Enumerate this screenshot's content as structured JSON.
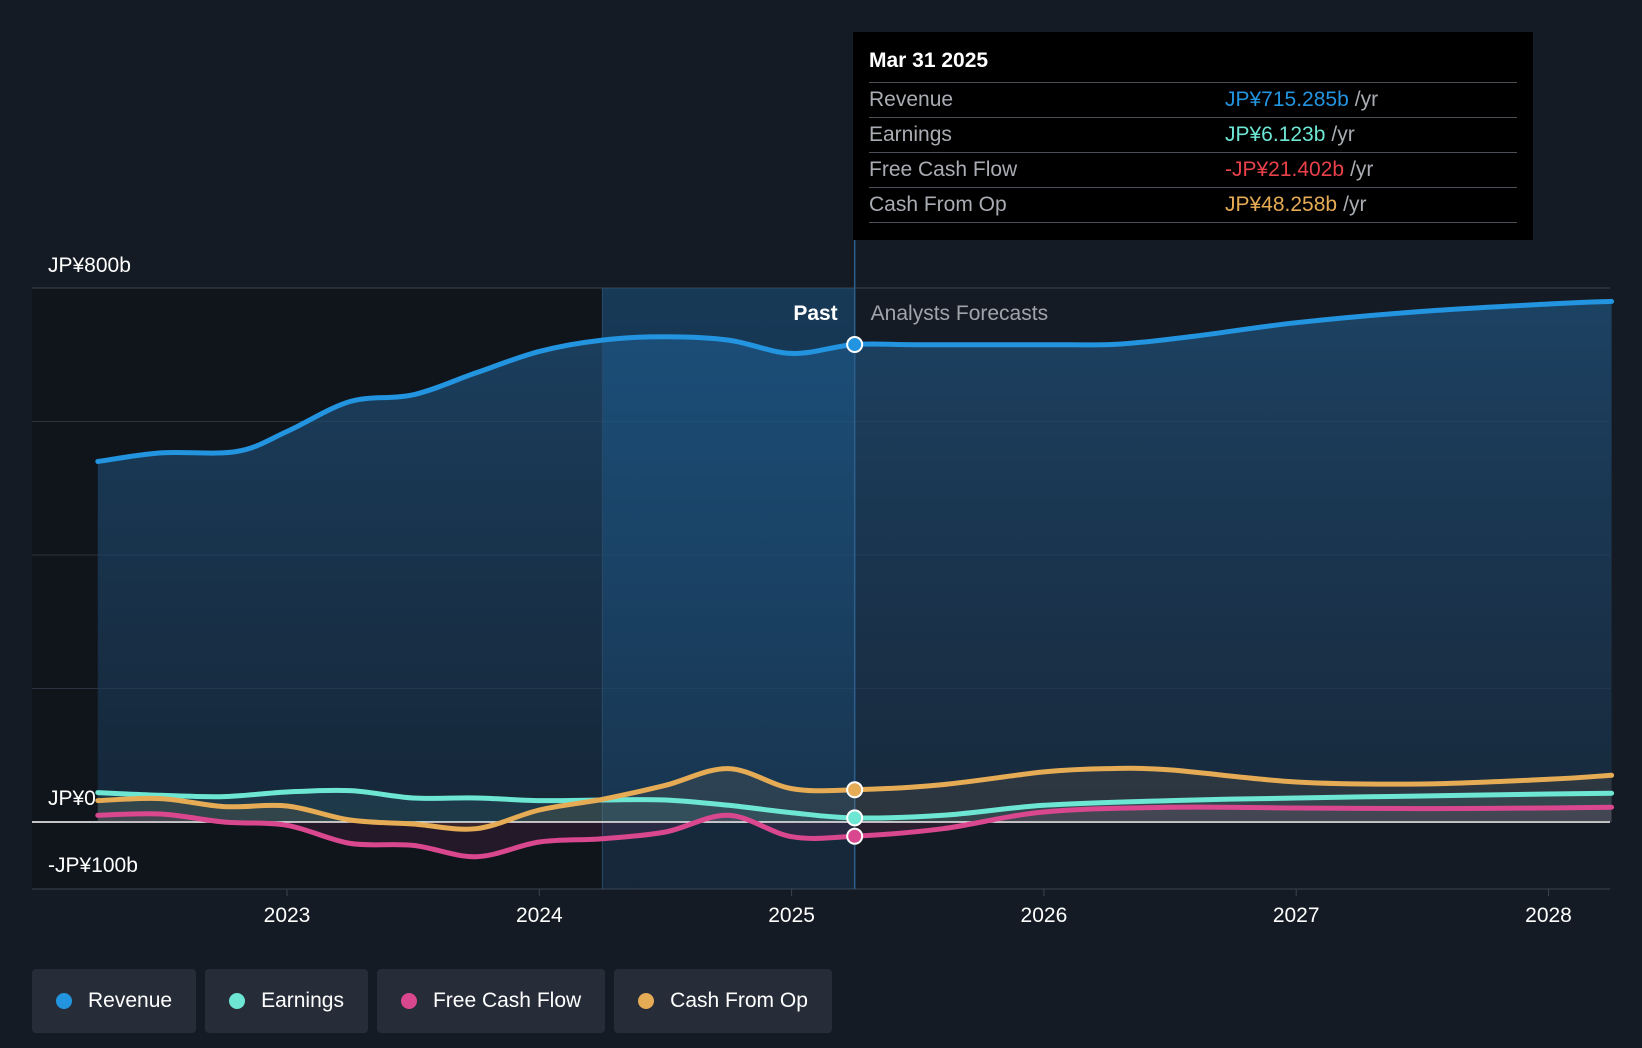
{
  "chart_data": {
    "type": "line",
    "currency": "JP¥",
    "x_ticks": [
      "2023",
      "2024",
      "2025",
      "2026",
      "2027",
      "2028"
    ],
    "y_labels": {
      "top": "JP¥800b",
      "zero": "JP¥0",
      "bottom": "-JP¥100b"
    },
    "ylim": [
      -100,
      800
    ],
    "xlim": [
      2022.25,
      2028.25
    ],
    "past_label": "Past",
    "forecast_label": "Analysts Forecasts",
    "divider_x": 2025.25,
    "highlight_start_x": 2024.25,
    "series": [
      {
        "key": "revenue",
        "name": "Revenue",
        "color": "#2394df",
        "fill": true,
        "points": [
          [
            2022.25,
            540
          ],
          [
            2022.5,
            553
          ],
          [
            2022.8,
            555
          ],
          [
            2023.0,
            585
          ],
          [
            2023.25,
            630
          ],
          [
            2023.5,
            640
          ],
          [
            2023.75,
            673
          ],
          [
            2024.0,
            705
          ],
          [
            2024.25,
            722
          ],
          [
            2024.5,
            727
          ],
          [
            2024.75,
            722
          ],
          [
            2025.0,
            702
          ],
          [
            2025.25,
            715.285
          ],
          [
            2025.5,
            715
          ],
          [
            2026.0,
            715
          ],
          [
            2026.3,
            716
          ],
          [
            2026.6,
            728
          ],
          [
            2027.0,
            748
          ],
          [
            2027.5,
            765
          ],
          [
            2028.0,
            776
          ],
          [
            2028.25,
            780
          ]
        ]
      },
      {
        "key": "earnings",
        "name": "Earnings",
        "color": "#6ee6d4",
        "fill": false,
        "points": [
          [
            2022.25,
            44
          ],
          [
            2022.5,
            40
          ],
          [
            2022.75,
            38
          ],
          [
            2023.0,
            45
          ],
          [
            2023.25,
            47
          ],
          [
            2023.5,
            36
          ],
          [
            2023.75,
            36
          ],
          [
            2024.0,
            32
          ],
          [
            2024.25,
            33
          ],
          [
            2024.5,
            33
          ],
          [
            2024.75,
            25
          ],
          [
            2025.0,
            14
          ],
          [
            2025.25,
            6.123
          ],
          [
            2025.6,
            10
          ],
          [
            2026.0,
            25
          ],
          [
            2026.5,
            32
          ],
          [
            2027.0,
            36
          ],
          [
            2027.5,
            39
          ],
          [
            2028.0,
            42
          ],
          [
            2028.25,
            43
          ]
        ]
      },
      {
        "key": "fcf",
        "name": "Free Cash Flow",
        "color": "#d9478f",
        "fill": false,
        "points": [
          [
            2022.25,
            10
          ],
          [
            2022.5,
            12
          ],
          [
            2022.75,
            0
          ],
          [
            2023.0,
            -5
          ],
          [
            2023.25,
            -32
          ],
          [
            2023.5,
            -35
          ],
          [
            2023.75,
            -52
          ],
          [
            2024.0,
            -30
          ],
          [
            2024.25,
            -25
          ],
          [
            2024.5,
            -15
          ],
          [
            2024.75,
            10
          ],
          [
            2025.0,
            -22
          ],
          [
            2025.25,
            -21.402
          ],
          [
            2025.6,
            -10
          ],
          [
            2026.0,
            15
          ],
          [
            2026.5,
            22
          ],
          [
            2027.0,
            21
          ],
          [
            2027.5,
            20
          ],
          [
            2028.0,
            21
          ],
          [
            2028.25,
            22
          ]
        ]
      },
      {
        "key": "cfo",
        "name": "Cash From Op",
        "color": "#e5ab55",
        "fill": false,
        "points": [
          [
            2022.25,
            32
          ],
          [
            2022.5,
            35
          ],
          [
            2022.75,
            23
          ],
          [
            2023.0,
            24
          ],
          [
            2023.25,
            3
          ],
          [
            2023.5,
            -3
          ],
          [
            2023.75,
            -10
          ],
          [
            2024.0,
            18
          ],
          [
            2024.25,
            34
          ],
          [
            2024.5,
            55
          ],
          [
            2024.75,
            80
          ],
          [
            2025.0,
            50
          ],
          [
            2025.25,
            48.258
          ],
          [
            2025.6,
            56
          ],
          [
            2026.0,
            75
          ],
          [
            2026.25,
            80
          ],
          [
            2026.5,
            78
          ],
          [
            2027.0,
            60
          ],
          [
            2027.5,
            57
          ],
          [
            2028.0,
            64
          ],
          [
            2028.25,
            70
          ]
        ]
      }
    ]
  },
  "tooltip": {
    "date": "Mar 31 2025",
    "unit": "/yr",
    "rows": [
      {
        "label": "Revenue",
        "value": "JP¥715.285b",
        "color": "#2394df"
      },
      {
        "label": "Earnings",
        "value": "JP¥6.123b",
        "color": "#6ee6d4"
      },
      {
        "label": "Free Cash Flow",
        "value": "-JP¥21.402b",
        "color": "#e8414a"
      },
      {
        "label": "Cash From Op",
        "value": "JP¥48.258b",
        "color": "#e5ab55"
      }
    ]
  },
  "legend": [
    {
      "label": "Revenue",
      "color": "#2394df"
    },
    {
      "label": "Earnings",
      "color": "#6ee6d4"
    },
    {
      "label": "Free Cash Flow",
      "color": "#d9478f"
    },
    {
      "label": "Cash From Op",
      "color": "#e5ab55"
    }
  ]
}
